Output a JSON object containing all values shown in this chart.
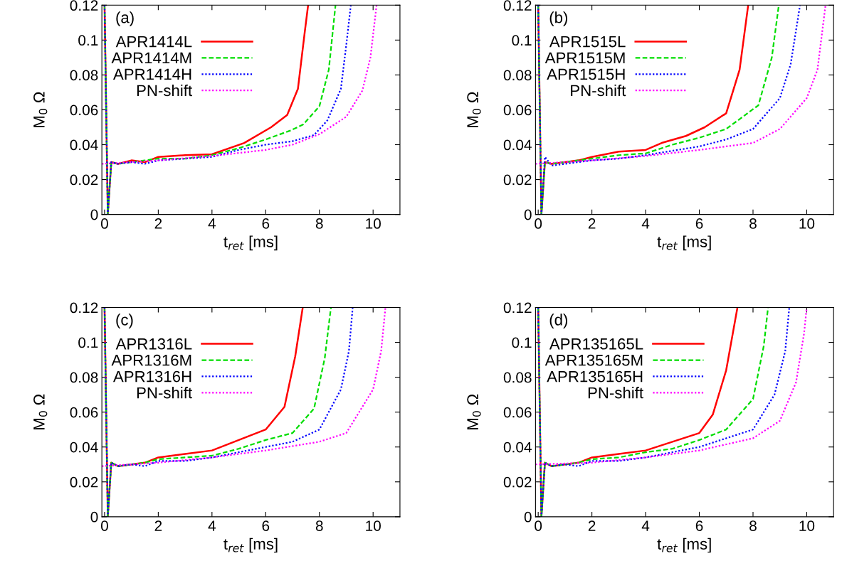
{
  "chart_data": [
    {
      "type": "line",
      "xlabel": "t$_{ret}$ [ms]",
      "ylabel": "M$_{0}$ Ω",
      "annotations": [
        "(a)"
      ],
      "xlim": [
        -0.1,
        11
      ],
      "ylim": [
        0,
        0.12
      ],
      "xticks": [
        0,
        2,
        4,
        6,
        8,
        10
      ],
      "yticks": [
        0,
        0.02,
        0.04,
        0.06,
        0.08,
        0.1,
        0.12
      ],
      "grid": false,
      "legend": "top left",
      "series": [
        {
          "name": "APR1414L",
          "color": "#ff0000",
          "line_style": "solid",
          "x": [
            0,
            0.12,
            0.25,
            0.5,
            1,
            1.5,
            2,
            3,
            4,
            5.2,
            6.2,
            6.8,
            7.2,
            7.45,
            7.58
          ],
          "values": [
            0.12,
            0.0,
            0.03,
            0.029,
            0.031,
            0.03,
            0.033,
            0.034,
            0.0345,
            0.041,
            0.05,
            0.057,
            0.072,
            0.104,
            0.12
          ]
        },
        {
          "name": "APR1414M",
          "color": "#00dd00",
          "line_style": "dashed",
          "x": [
            0,
            0.12,
            0.25,
            0.5,
            1,
            1.5,
            2,
            3,
            4,
            5,
            6,
            6.9,
            7.4,
            8,
            8.35,
            8.6
          ],
          "values": [
            0.12,
            0.0,
            0.03,
            0.029,
            0.03,
            0.031,
            0.032,
            0.032,
            0.034,
            0.038,
            0.043,
            0.048,
            0.0516,
            0.062,
            0.083,
            0.12
          ]
        },
        {
          "name": "APR1414H",
          "color": "#0000ff",
          "line_style": "dotted",
          "x": [
            0,
            0.12,
            0.25,
            0.5,
            1,
            1.5,
            2,
            3,
            4,
            5,
            6,
            7,
            7.8,
            8.3,
            8.8,
            9,
            9.17
          ],
          "values": [
            0.12,
            0.0,
            0.03,
            0.029,
            0.03,
            0.029,
            0.031,
            0.032,
            0.033,
            0.037,
            0.04,
            0.042,
            0.0455,
            0.054,
            0.072,
            0.097,
            0.12
          ]
        },
        {
          "name": "PN-shift",
          "color": "#ff00ff",
          "line_style": "dotted",
          "x": [
            -0.1,
            2,
            4,
            6,
            7,
            8,
            9,
            9.6,
            9.9,
            10.13
          ],
          "values": [
            0.029,
            0.031,
            0.0335,
            0.037,
            0.04,
            0.046,
            0.056,
            0.071,
            0.09,
            0.12
          ]
        }
      ]
    },
    {
      "type": "line",
      "xlabel": "t$_{ret}$ [ms]",
      "ylabel": "M$_{0}$ Ω",
      "annotations": [
        "(b)"
      ],
      "xlim": [
        -0.1,
        11
      ],
      "ylim": [
        0,
        0.12
      ],
      "xticks": [
        0,
        2,
        4,
        6,
        8,
        10
      ],
      "yticks": [
        0,
        0.02,
        0.04,
        0.06,
        0.08,
        0.1,
        0.12
      ],
      "grid": false,
      "legend": "top left",
      "series": [
        {
          "name": "APR1515L",
          "color": "#ff0000",
          "line_style": "solid",
          "x": [
            0,
            0.12,
            0.25,
            0.5,
            1,
            1.5,
            2,
            3,
            4,
            4.6,
            5.5,
            6.2,
            7,
            7.5,
            7.82
          ],
          "values": [
            0.12,
            0.0,
            0.03,
            0.029,
            0.03,
            0.031,
            0.033,
            0.036,
            0.037,
            0.041,
            0.045,
            0.05,
            0.058,
            0.083,
            0.12
          ]
        },
        {
          "name": "APR1515M",
          "color": "#00dd00",
          "line_style": "dashed",
          "x": [
            0,
            0.12,
            0.25,
            0.5,
            1,
            1.5,
            2,
            3,
            4,
            5,
            6,
            7,
            8.2,
            8.7,
            8.96
          ],
          "values": [
            0.12,
            0.0,
            0.03,
            0.029,
            0.03,
            0.031,
            0.032,
            0.034,
            0.035,
            0.04,
            0.044,
            0.049,
            0.0626,
            0.09,
            0.12
          ]
        },
        {
          "name": "APR1515H",
          "color": "#0000ff",
          "line_style": "dotted",
          "x": [
            0,
            0.12,
            0.25,
            0.5,
            1,
            1.5,
            2,
            3,
            4,
            6,
            7,
            8,
            9,
            9.4,
            9.75
          ],
          "values": [
            0.12,
            0.0,
            0.033,
            0.028,
            0.029,
            0.03,
            0.031,
            0.032,
            0.034,
            0.039,
            0.043,
            0.049,
            0.0667,
            0.086,
            0.12
          ]
        },
        {
          "name": "PN-shift",
          "color": "#ff00ff",
          "line_style": "dotted",
          "x": [
            -0.1,
            2,
            4,
            6,
            7,
            8,
            9,
            10,
            10.4,
            10.7
          ],
          "values": [
            0.029,
            0.031,
            0.0335,
            0.037,
            0.039,
            0.041,
            0.049,
            0.0667,
            0.083,
            0.12
          ]
        }
      ]
    },
    {
      "type": "line",
      "xlabel": "t$_{ret}$ [ms]",
      "ylabel": "M$_{0}$ Ω",
      "annotations": [
        "(c)"
      ],
      "xlim": [
        -0.1,
        11
      ],
      "ylim": [
        0,
        0.12
      ],
      "xticks": [
        0,
        2,
        4,
        6,
        8,
        10
      ],
      "yticks": [
        0,
        0.02,
        0.04,
        0.06,
        0.08,
        0.1,
        0.12
      ],
      "grid": false,
      "legend": "top left",
      "series": [
        {
          "name": "APR1316L",
          "color": "#ff0000",
          "line_style": "solid",
          "x": [
            0,
            0.12,
            0.25,
            0.5,
            1,
            1.5,
            2,
            3,
            4,
            5,
            6,
            6.7,
            7.1,
            7.38
          ],
          "values": [
            0.12,
            0.0,
            0.031,
            0.029,
            0.03,
            0.031,
            0.034,
            0.036,
            0.038,
            0.044,
            0.05,
            0.063,
            0.092,
            0.12
          ]
        },
        {
          "name": "APR1316M",
          "color": "#00dd00",
          "line_style": "dashed",
          "x": [
            0,
            0.12,
            0.25,
            0.5,
            1,
            1.5,
            2,
            3,
            4,
            5,
            6,
            7,
            7.8,
            8.2,
            8.43
          ],
          "values": [
            0.12,
            0.0,
            0.031,
            0.029,
            0.03,
            0.031,
            0.033,
            0.034,
            0.035,
            0.039,
            0.044,
            0.048,
            0.062,
            0.091,
            0.12
          ]
        },
        {
          "name": "APR1316H",
          "color": "#0000ff",
          "line_style": "dotted",
          "x": [
            0,
            0.12,
            0.25,
            0.5,
            1,
            1.5,
            2,
            3,
            4,
            5,
            6,
            7,
            8,
            8.8,
            9.1,
            9.24
          ],
          "values": [
            0.12,
            0.0,
            0.031,
            0.029,
            0.03,
            0.029,
            0.032,
            0.032,
            0.034,
            0.037,
            0.04,
            0.043,
            0.05,
            0.073,
            0.095,
            0.12
          ]
        },
        {
          "name": "PN-shift",
          "color": "#ff00ff",
          "line_style": "dotted",
          "x": [
            -0.1,
            2,
            4,
            6,
            8,
            9,
            10,
            10.3,
            10.46
          ],
          "values": [
            0.029,
            0.031,
            0.034,
            0.038,
            0.043,
            0.048,
            0.073,
            0.095,
            0.12
          ]
        }
      ]
    },
    {
      "type": "line",
      "xlabel": "t$_{ret}$ [ms]",
      "ylabel": "M$_{0}$ Ω",
      "annotations": [
        "(d)"
      ],
      "xlim": [
        -0.1,
        11
      ],
      "ylim": [
        0,
        0.12
      ],
      "xticks": [
        0,
        2,
        4,
        6,
        8,
        10
      ],
      "yticks": [
        0,
        0.02,
        0.04,
        0.06,
        0.08,
        0.1,
        0.12
      ],
      "grid": false,
      "legend": "top left",
      "series": [
        {
          "name": "APR135165L",
          "color": "#ff0000",
          "line_style": "solid",
          "x": [
            0,
            0.12,
            0.25,
            0.5,
            1,
            1.5,
            2,
            3,
            4,
            5,
            6,
            6.5,
            7,
            7.42
          ],
          "values": [
            0.12,
            0.0,
            0.031,
            0.029,
            0.03,
            0.031,
            0.034,
            0.036,
            0.038,
            0.043,
            0.048,
            0.0585,
            0.084,
            0.12
          ]
        },
        {
          "name": "APR135165M",
          "color": "#00dd00",
          "line_style": "dashed",
          "x": [
            0,
            0.12,
            0.25,
            0.5,
            1,
            1.5,
            2,
            3,
            4,
            5,
            6,
            7,
            8,
            8.4,
            8.56
          ],
          "values": [
            0.12,
            0.0,
            0.031,
            0.029,
            0.03,
            0.031,
            0.033,
            0.034,
            0.037,
            0.039,
            0.044,
            0.05,
            0.0675,
            0.098,
            0.12
          ]
        },
        {
          "name": "APR135165H",
          "color": "#0000ff",
          "line_style": "dotted",
          "x": [
            0,
            0.12,
            0.25,
            0.5,
            1,
            1.5,
            2,
            3,
            4,
            6,
            7,
            8,
            8.8,
            9.2,
            9.35
          ],
          "values": [
            0.12,
            0.0,
            0.031,
            0.029,
            0.03,
            0.029,
            0.032,
            0.032,
            0.034,
            0.04,
            0.045,
            0.05,
            0.07,
            0.095,
            0.12
          ]
        },
        {
          "name": "PN-shift",
          "color": "#ff00ff",
          "line_style": "dotted",
          "x": [
            -0.1,
            2,
            4,
            6,
            8,
            9,
            9.6,
            9.9,
            10.0
          ],
          "values": [
            0.03,
            0.031,
            0.034,
            0.038,
            0.045,
            0.055,
            0.077,
            0.105,
            0.12
          ]
        }
      ]
    }
  ]
}
